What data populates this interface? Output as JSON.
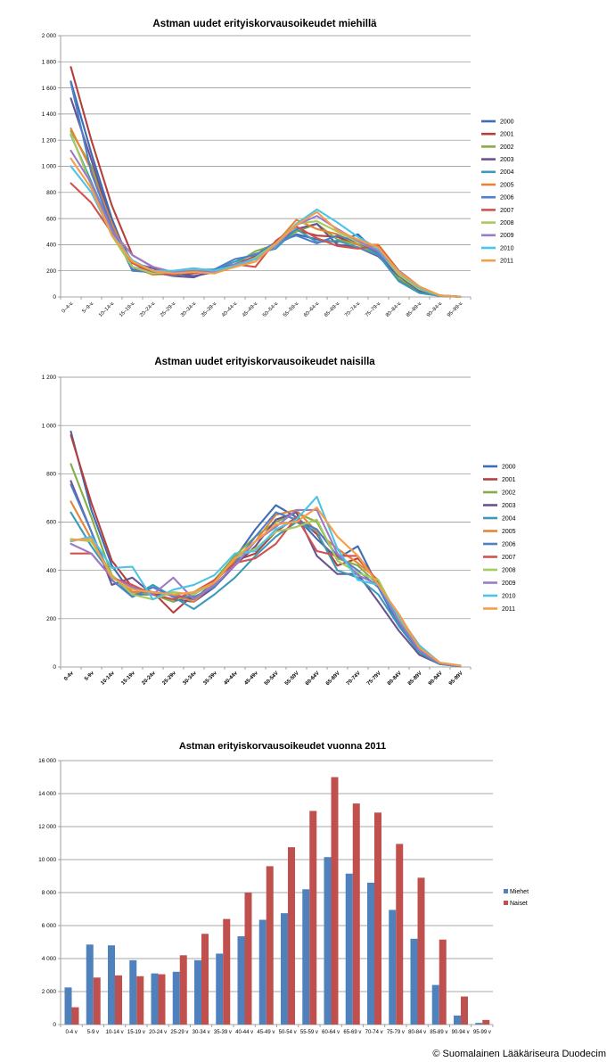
{
  "chart_data": [
    {
      "type": "line",
      "title": "Astman uudet erityiskorvausoikeudet miehillä",
      "categories": [
        "0–4-v.",
        "5–9-v.",
        "10–14-v.",
        "15–19-v.",
        "20–24-v.",
        "25–29-v.",
        "30–34-v.",
        "35–39-v.",
        "40–44-v.",
        "45–49-v.",
        "50–54-v.",
        "55–59-v.",
        "60–64-v.",
        "65–69-v.",
        "70–74-v.",
        "75–79-v.",
        "80–84-v.",
        "85–89-v.",
        "90–94-v.",
        "95–99-v."
      ],
      "yticks": [
        "0",
        "200",
        "400",
        "600",
        "800",
        "1 000",
        "1 200",
        "1 400",
        "1 600",
        "1 800",
        "2 000"
      ],
      "ylim": [
        0,
        2000
      ],
      "grid": true,
      "legend": "right",
      "series": [
        {
          "name": "2000",
          "color": "#3C6CB4",
          "values": [
            1650,
            1100,
            600,
            210,
            200,
            180,
            160,
            190,
            240,
            300,
            400,
            480,
            440,
            420,
            480,
            330,
            130,
            40,
            8,
            1
          ]
        },
        {
          "name": "2001",
          "color": "#B53F3C",
          "values": [
            1760,
            1200,
            700,
            320,
            230,
            170,
            180,
            200,
            250,
            310,
            390,
            510,
            470,
            460,
            400,
            360,
            190,
            70,
            12,
            2
          ]
        },
        {
          "name": "2002",
          "color": "#86AC45",
          "values": [
            1270,
            1000,
            530,
            270,
            200,
            160,
            200,
            200,
            250,
            350,
            400,
            500,
            560,
            440,
            400,
            330,
            140,
            50,
            10,
            2
          ]
        },
        {
          "name": "2003",
          "color": "#6B5290",
          "values": [
            1520,
            1050,
            560,
            260,
            220,
            160,
            150,
            210,
            250,
            290,
            400,
            520,
            560,
            400,
            380,
            310,
            160,
            50,
            10,
            1
          ]
        },
        {
          "name": "2004",
          "color": "#3C9AB8",
          "values": [
            1240,
            880,
            520,
            230,
            190,
            170,
            210,
            210,
            270,
            330,
            370,
            520,
            420,
            430,
            380,
            320,
            120,
            30,
            8,
            1
          ]
        },
        {
          "name": "2005",
          "color": "#E58532",
          "values": [
            1290,
            970,
            560,
            230,
            170,
            180,
            200,
            190,
            230,
            290,
            410,
            590,
            520,
            480,
            400,
            400,
            200,
            80,
            10,
            2
          ]
        },
        {
          "name": "2006",
          "color": "#4E80C8",
          "values": [
            1640,
            950,
            530,
            200,
            190,
            160,
            200,
            210,
            290,
            320,
            420,
            470,
            410,
            470,
            420,
            330,
            170,
            60,
            10,
            1
          ]
        },
        {
          "name": "2007",
          "color": "#D1524E",
          "values": [
            870,
            720,
            490,
            260,
            180,
            170,
            200,
            180,
            250,
            230,
            430,
            540,
            450,
            390,
            370,
            390,
            200,
            80,
            10,
            2
          ]
        },
        {
          "name": "2008",
          "color": "#A4CA60",
          "values": [
            1250,
            850,
            470,
            230,
            180,
            190,
            210,
            200,
            240,
            300,
            410,
            560,
            580,
            500,
            420,
            360,
            170,
            60,
            10,
            2
          ]
        },
        {
          "name": "2009",
          "color": "#9A7BC8",
          "values": [
            1120,
            870,
            510,
            320,
            230,
            190,
            200,
            190,
            250,
            290,
            390,
            550,
            620,
            520,
            430,
            350,
            200,
            70,
            12,
            2
          ]
        },
        {
          "name": "2010",
          "color": "#4CC4E6",
          "values": [
            1000,
            800,
            480,
            280,
            200,
            200,
            220,
            200,
            240,
            290,
            400,
            560,
            670,
            570,
            460,
            370,
            190,
            70,
            12,
            2
          ]
        },
        {
          "name": "2011",
          "color": "#F89C45",
          "values": [
            1060,
            830,
            470,
            270,
            200,
            180,
            190,
            180,
            230,
            270,
            410,
            550,
            650,
            510,
            440,
            380,
            190,
            80,
            12,
            2
          ]
        }
      ]
    },
    {
      "type": "line",
      "title": "Astman uudet erityiskorvausoikeudet naisilla",
      "categories": [
        "0-4v",
        "5-9v",
        "10-14v",
        "15-19v",
        "20-24v",
        "25-29v",
        "30-34v",
        "35-39v",
        "40-44v",
        "45-49v",
        "50-54V",
        "55-59V",
        "60-64V",
        "65-69V",
        "70-74V",
        "75-79V",
        "80-84V",
        "85-89V",
        "90-94V",
        "95-99V"
      ],
      "yticks": [
        "0",
        "200",
        "400",
        "600",
        "800",
        "1 000",
        "1 200"
      ],
      "ylim": [
        0,
        1200
      ],
      "grid": true,
      "legend": "right",
      "series": [
        {
          "name": "2000",
          "color": "#3C6CB4",
          "values": [
            975,
            650,
            420,
            300,
            300,
            300,
            280,
            350,
            450,
            570,
            670,
            620,
            530,
            450,
            500,
            330,
            170,
            60,
            12,
            3
          ]
        },
        {
          "name": "2001",
          "color": "#B53F3C",
          "values": [
            960,
            680,
            440,
            330,
            310,
            225,
            300,
            360,
            440,
            470,
            560,
            620,
            550,
            420,
            450,
            350,
            190,
            80,
            15,
            5
          ]
        },
        {
          "name": "2002",
          "color": "#86AC45",
          "values": [
            840,
            620,
            380,
            310,
            300,
            270,
            300,
            360,
            460,
            540,
            600,
            640,
            600,
            450,
            420,
            340,
            190,
            70,
            15,
            4
          ]
        },
        {
          "name": "2003",
          "color": "#6B5290",
          "values": [
            770,
            560,
            340,
            370,
            300,
            280,
            270,
            330,
            420,
            500,
            610,
            640,
            460,
            385,
            385,
            270,
            150,
            50,
            12,
            3
          ]
        },
        {
          "name": "2004",
          "color": "#3C9AB8",
          "values": [
            640,
            500,
            380,
            290,
            340,
            290,
            240,
            300,
            370,
            460,
            540,
            600,
            560,
            400,
            370,
            300,
            170,
            60,
            12,
            3
          ]
        },
        {
          "name": "2005",
          "color": "#E58532",
          "values": [
            685,
            530,
            380,
            310,
            310,
            300,
            270,
            350,
            440,
            520,
            630,
            650,
            560,
            490,
            430,
            360,
            200,
            80,
            15,
            4
          ]
        },
        {
          "name": "2006",
          "color": "#4E80C8",
          "values": [
            755,
            560,
            360,
            290,
            330,
            290,
            290,
            330,
            430,
            540,
            640,
            610,
            570,
            460,
            400,
            330,
            180,
            70,
            15,
            4
          ]
        },
        {
          "name": "2007",
          "color": "#D1524E",
          "values": [
            470,
            470,
            370,
            340,
            300,
            280,
            310,
            360,
            430,
            450,
            510,
            620,
            480,
            460,
            460,
            350,
            190,
            70,
            15,
            5
          ]
        },
        {
          "name": "2008",
          "color": "#A4CA60",
          "values": [
            530,
            520,
            380,
            300,
            280,
            310,
            300,
            350,
            450,
            490,
            560,
            580,
            610,
            440,
            390,
            360,
            200,
            80,
            17,
            5
          ]
        },
        {
          "name": "2009",
          "color": "#9A7BC8",
          "values": [
            510,
            470,
            370,
            330,
            300,
            370,
            280,
            340,
            420,
            520,
            580,
            650,
            650,
            470,
            380,
            340,
            190,
            70,
            15,
            4
          ]
        },
        {
          "name": "2010",
          "color": "#4CC4E6",
          "values": [
            520,
            540,
            410,
            415,
            280,
            320,
            340,
            380,
            470,
            480,
            570,
            610,
            705,
            490,
            360,
            340,
            210,
            90,
            18,
            6
          ]
        },
        {
          "name": "2011",
          "color": "#F89C45",
          "values": [
            525,
            530,
            370,
            320,
            310,
            300,
            310,
            350,
            450,
            520,
            590,
            600,
            660,
            540,
            460,
            340,
            220,
            80,
            18,
            6
          ]
        }
      ]
    },
    {
      "type": "bar",
      "title": "Astman erityiskorvausoikeudet vuonna 2011",
      "categories": [
        "0-4 v",
        "5-9 v",
        "10-14 v",
        "15-19 v",
        "20-24 v",
        "25-29 v",
        "30-34 v",
        "35-39 v",
        "40-44 v",
        "45-49 v",
        "50-54 v",
        "55-59 v",
        "60-64 v",
        "65-69 v",
        "70-74 v",
        "75-79 v",
        "80-84 v",
        "85-89 v",
        "90-94 v",
        "95-99 v"
      ],
      "yticks": [
        "0",
        "2 000",
        "4 000",
        "6 000",
        "8 000",
        "10 000",
        "12 000",
        "14 000",
        "16 000"
      ],
      "ylim": [
        0,
        16000
      ],
      "grid": true,
      "legend": "right",
      "series": [
        {
          "name": "Miehet",
          "color": "#4F81BD",
          "values": [
            2250,
            4850,
            4800,
            3900,
            3100,
            3200,
            3900,
            4300,
            5350,
            6350,
            6750,
            8200,
            10150,
            9150,
            8600,
            6950,
            5200,
            2400,
            550,
            100
          ]
        },
        {
          "name": "Naiset",
          "color": "#C0504D",
          "values": [
            1050,
            2850,
            2980,
            2930,
            3050,
            4200,
            5500,
            6400,
            8000,
            9600,
            10750,
            12950,
            15000,
            13400,
            12850,
            10950,
            8900,
            5150,
            1700,
            280
          ]
        }
      ]
    }
  ],
  "copyright": "© Suomalainen Lääkäriseura Duodecim"
}
